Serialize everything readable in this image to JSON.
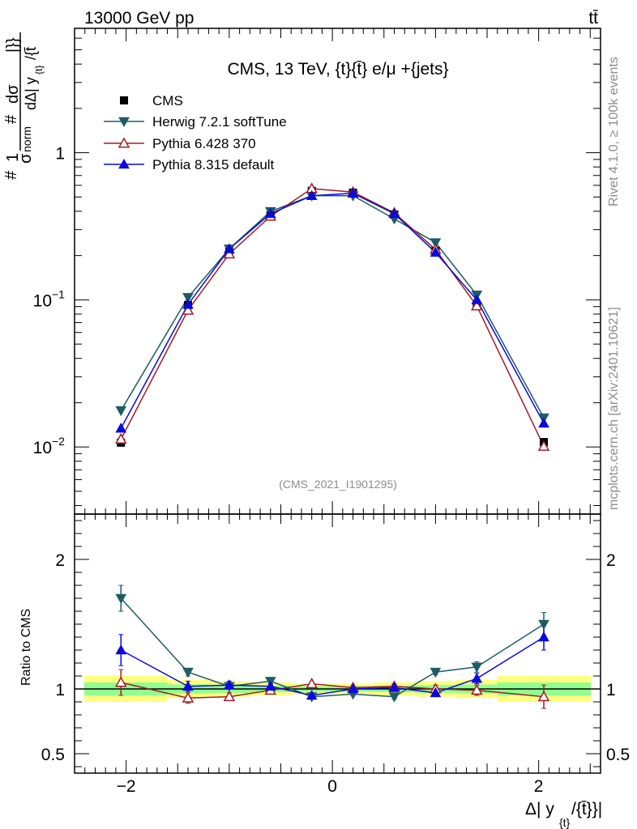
{
  "header": {
    "energy_label": "13000 GeV pp",
    "process_label": "tt̄"
  },
  "side_labels": {
    "rivet": "Rivet 4.1.0, ≥ 100k events",
    "mcplots": "mcplots.cern.ch [arXiv:2401.10621]"
  },
  "chart_data": {
    "type": "line",
    "title": "CMS, 13 TeV, {t}{t̄} e/μ +{jets}",
    "analysis_id": "(CMS_2021_I1901295)",
    "ylabel_main": "#1/σnorm # dσ / dΔ| y{t}/{t̄}|}}",
    "ylabel_ratio": "Ratio to CMS",
    "xlabel": "Δ| y{t}/{t̄}}|",
    "xlim": [
      -2.5,
      2.6
    ],
    "ylim_main": [
      0.0035,
      7
    ],
    "ylim_ratio": [
      0.35,
      2.35
    ],
    "yscale_main": "log",
    "x_ticks": [
      -2,
      0,
      2
    ],
    "x_tick_labels": [
      "−2",
      "0",
      "2"
    ],
    "main_y_ticks": [
      0.01,
      0.1,
      1
    ],
    "main_y_tick_labels": [
      "10",
      "10",
      "1"
    ],
    "main_y_tick_exps": [
      "−2",
      "−1",
      ""
    ],
    "ratio_y_ticks": [
      0.5,
      1,
      2
    ],
    "ratio_y_tick_labels": [
      "0.5",
      "1",
      "2"
    ],
    "x": [
      -2.05,
      -1.4,
      -1.0,
      -0.6,
      -0.2,
      0.2,
      0.6,
      1.0,
      1.4,
      2.05
    ],
    "bin_edges": [
      -2.6,
      -1.6,
      -1.2,
      -0.8,
      -0.4,
      0,
      0.4,
      0.8,
      1.2,
      1.6,
      2.6
    ],
    "data": {
      "name": "CMS",
      "values": [
        0.0107,
        0.092,
        0.218,
        0.375,
        0.55,
        0.535,
        0.38,
        0.215,
        0.092,
        0.0108
      ],
      "band_green": [
        0.05,
        0.035,
        0.03,
        0.025,
        0.02,
        0.02,
        0.025,
        0.03,
        0.035,
        0.05
      ],
      "band_yellow": [
        0.1,
        0.07,
        0.06,
        0.05,
        0.04,
        0.04,
        0.05,
        0.06,
        0.07,
        0.1
      ]
    },
    "series": [
      {
        "name": "Herwig 7.2.1 softTune",
        "color": "#1e5c64",
        "marker": "triangle-down-filled",
        "values": [
          0.0177,
          0.104,
          0.222,
          0.399,
          0.51,
          0.51,
          0.355,
          0.245,
          0.108,
          0.0158
        ],
        "ratio": [
          1.7,
          1.13,
          1.02,
          1.06,
          0.94,
          0.96,
          0.94,
          1.13,
          1.17,
          1.5
        ],
        "ratio_err": [
          0.1,
          0.03,
          0.02,
          0.02,
          0.01,
          0.01,
          0.02,
          0.02,
          0.04,
          0.09
        ]
      },
      {
        "name": "Pythia 6.428 370",
        "color": "#a01c28",
        "marker": "triangle-up-open",
        "values": [
          0.0113,
          0.085,
          0.205,
          0.37,
          0.57,
          0.54,
          0.39,
          0.22,
          0.091,
          0.0101
        ],
        "ratio": [
          1.05,
          0.93,
          0.94,
          0.99,
          1.04,
          1.01,
          1.02,
          1.0,
          0.99,
          0.94
        ],
        "ratio_err": [
          0.1,
          0.04,
          0.03,
          0.02,
          0.01,
          0.01,
          0.02,
          0.03,
          0.04,
          0.09
        ]
      },
      {
        "name": "Pythia 8.315 default",
        "color": "#0a0adc",
        "marker": "triangle-up-filled",
        "values": [
          0.0134,
          0.093,
          0.222,
          0.385,
          0.51,
          0.53,
          0.385,
          0.21,
          0.1,
          0.0145
        ],
        "ratio": [
          1.3,
          1.02,
          1.03,
          1.02,
          0.95,
          1.0,
          1.01,
          0.97,
          1.08,
          1.4
        ],
        "ratio_err": [
          0.12,
          0.04,
          0.03,
          0.02,
          0.01,
          0.01,
          0.02,
          0.03,
          0.04,
          0.1
        ]
      }
    ],
    "legend": {
      "position": "top-left",
      "entries": [
        "CMS",
        "Herwig 7.2.1 softTune",
        "Pythia 6.428 370",
        "Pythia 8.315 default"
      ]
    }
  }
}
